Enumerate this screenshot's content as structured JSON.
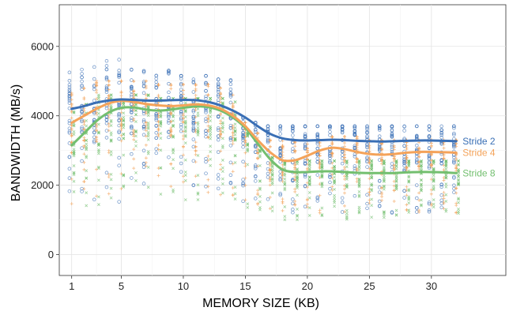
{
  "chart_data": {
    "type": "scatter",
    "title": "",
    "xlabel": "MEMORY SIZE (KB)",
    "ylabel": "BANDWIDTH (MB/s)",
    "xlim": [
      0,
      36
    ],
    "ylim": [
      -600,
      7200
    ],
    "x_ticks": [
      1,
      5,
      10,
      15,
      20,
      25,
      30
    ],
    "y_ticks": [
      0,
      2000,
      4000,
      6000
    ],
    "grid": true,
    "legend": "direct labels at right end of smoothed lines",
    "x": [
      1,
      2,
      3,
      4,
      5,
      6,
      7,
      8,
      9,
      10,
      11,
      12,
      13,
      14,
      15,
      16,
      17,
      18,
      19,
      20,
      21,
      22,
      23,
      24,
      25,
      26,
      27,
      28,
      29,
      30,
      31,
      32
    ],
    "series": [
      {
        "name": "Stride 2",
        "color": "#3a6fb5",
        "marker": "circle",
        "smooth": [
          4200,
          4280,
          4380,
          4440,
          4470,
          4460,
          4440,
          4440,
          4450,
          4460,
          4450,
          4400,
          4300,
          4150,
          3950,
          3700,
          3480,
          3350,
          3300,
          3290,
          3300,
          3310,
          3300,
          3280,
          3270,
          3260,
          3270,
          3280,
          3290,
          3290,
          3280,
          3270
        ],
        "range_low": [
          1400,
          1450,
          1500,
          1600,
          1500,
          1700,
          1700,
          1800,
          1700,
          1700,
          1600,
          1800,
          1800,
          1800,
          1500,
          1400,
          1300,
          1200,
          1200,
          1200,
          1300,
          1200,
          1200,
          1300,
          1200,
          1200,
          1200,
          1200,
          1200,
          1200,
          1300,
          1300
        ],
        "range_high": [
          5250,
          5500,
          5700,
          5600,
          5700,
          5450,
          5350,
          5400,
          5300,
          5150,
          5050,
          5150,
          5050,
          5050,
          3950,
          3800,
          3700,
          3700,
          3700,
          3700,
          3700,
          3700,
          3700,
          3700,
          3700,
          3700,
          3700,
          3700,
          3700,
          3700,
          3700,
          3700
        ]
      },
      {
        "name": "Stride 4",
        "color": "#f4a35a",
        "marker": "plus",
        "smooth": [
          3800,
          4000,
          4200,
          4360,
          4430,
          4400,
          4340,
          4300,
          4280,
          4300,
          4330,
          4300,
          4200,
          4000,
          3700,
          3300,
          2950,
          2720,
          2720,
          2850,
          3000,
          3080,
          3040,
          2960,
          2900,
          2880,
          2900,
          2940,
          2960,
          2960,
          2950,
          2940
        ],
        "range_low": [
          1400,
          1500,
          1500,
          1600,
          1700,
          1700,
          1700,
          1700,
          1700,
          1700,
          1700,
          1700,
          1700,
          1700,
          1500,
          1400,
          1300,
          1200,
          1200,
          1200,
          1200,
          1200,
          1200,
          1200,
          1200,
          1200,
          1200,
          1200,
          1200,
          1200,
          1200,
          1200
        ],
        "range_high": [
          4800,
          4900,
          5000,
          5000,
          5000,
          5000,
          5000,
          4900,
          4900,
          4900,
          4900,
          4900,
          4800,
          4600,
          3800,
          3500,
          3300,
          3300,
          3300,
          3300,
          3300,
          3400,
          3400,
          3400,
          3300,
          3300,
          3300,
          3300,
          3300,
          3300,
          3300,
          3300
        ]
      },
      {
        "name": "Stride 8",
        "color": "#73bf6f",
        "marker": "x",
        "smooth": [
          3150,
          3500,
          3850,
          4100,
          4230,
          4240,
          4180,
          4150,
          4180,
          4230,
          4270,
          4250,
          4150,
          3950,
          3650,
          3200,
          2750,
          2450,
          2380,
          2380,
          2400,
          2400,
          2380,
          2360,
          2350,
          2350,
          2350,
          2370,
          2380,
          2380,
          2370,
          2350
        ],
        "range_low": [
          1200,
          1300,
          1300,
          1400,
          1300,
          1500,
          1500,
          1500,
          1500,
          1500,
          1500,
          1500,
          1500,
          1500,
          1300,
          1200,
          1100,
          1000,
          1000,
          1000,
          1100,
          1000,
          1000,
          1100,
          1000,
          1000,
          1000,
          1000,
          1000,
          1000,
          1100,
          1100
        ],
        "range_high": [
          4300,
          4500,
          4600,
          4600,
          4600,
          4600,
          4600,
          4500,
          4500,
          4500,
          4500,
          4500,
          4500,
          4400,
          3500,
          3000,
          2800,
          2700,
          2700,
          2700,
          2700,
          2700,
          2700,
          2700,
          2700,
          2700,
          2700,
          2700,
          2700,
          2700,
          2700,
          2700
        ]
      }
    ]
  }
}
